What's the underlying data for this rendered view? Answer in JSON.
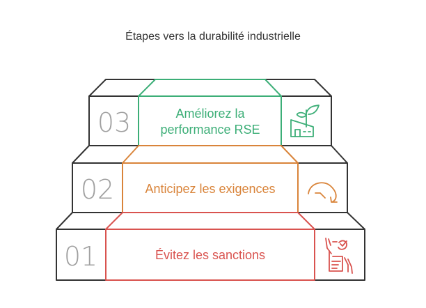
{
  "title": "Étapes vers la durabilité industrielle",
  "colors": {
    "outline": "#333333",
    "step1": "#d9534f",
    "step2": "#d9843a",
    "step3": "#3cae77",
    "number": "#a0a0a0"
  },
  "steps": [
    {
      "number": "01",
      "label_lines": [
        "Évitez les sanctions"
      ],
      "icon": "checklist-hands-icon"
    },
    {
      "number": "02",
      "label_lines": [
        "Anticipez les exigences"
      ],
      "icon": "circular-arrow-icon"
    },
    {
      "number": "03",
      "label_lines": [
        "Améliorez la",
        "performance RSE"
      ],
      "icon": "green-factory-plant-icon"
    }
  ]
}
